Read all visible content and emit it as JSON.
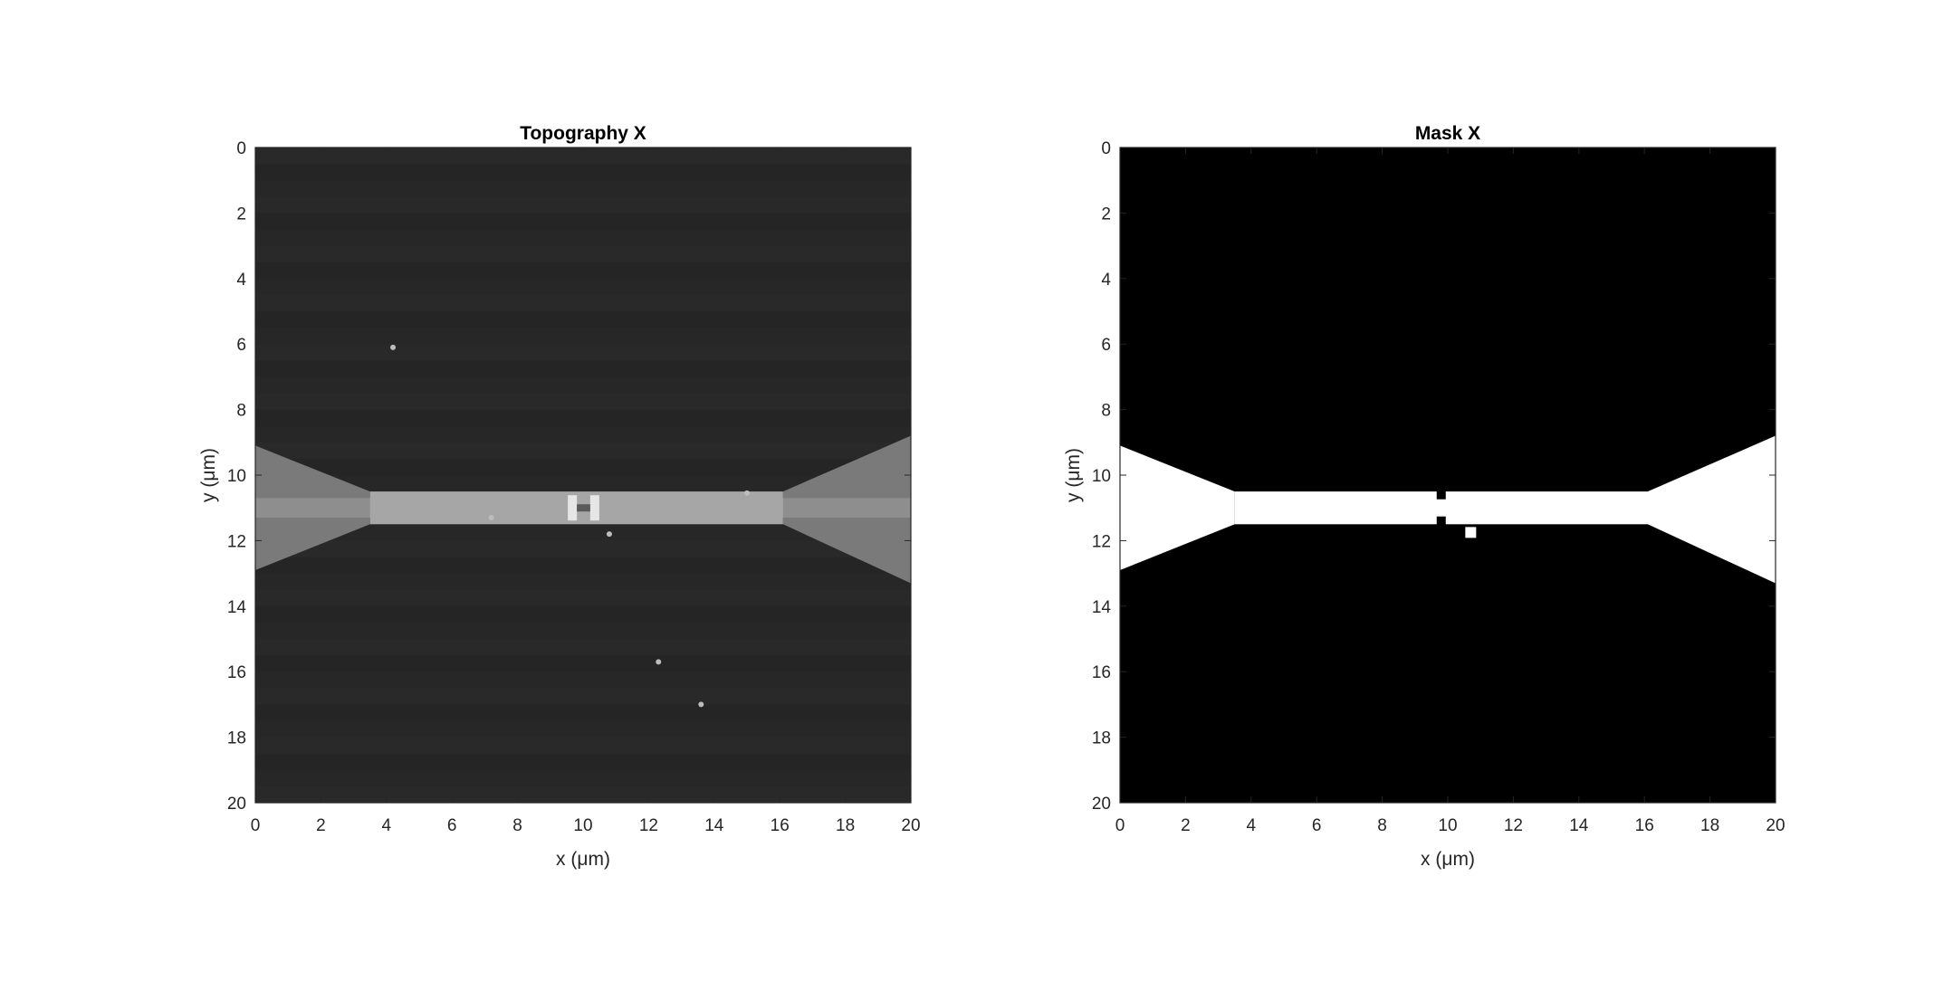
{
  "chart_data": [
    {
      "type": "heatmap",
      "title": "Topography X",
      "xlabel": "x (μm)",
      "ylabel": "y (μm)",
      "xlim": [
        0,
        20
      ],
      "ylim": [
        0,
        20
      ],
      "y_direction": "reversed",
      "xticks": [
        0,
        2,
        4,
        6,
        8,
        10,
        12,
        14,
        16,
        18,
        20
      ],
      "yticks": [
        0,
        2,
        4,
        6,
        8,
        10,
        12,
        14,
        16,
        18,
        20
      ],
      "xtick_labels": [
        "0",
        "2",
        "4",
        "6",
        "8",
        "10",
        "12",
        "14",
        "16",
        "18",
        "20"
      ],
      "ytick_labels": [
        "0",
        "2",
        "4",
        "6",
        "8",
        "10",
        "12",
        "14",
        "16",
        "18",
        "20"
      ],
      "colormap": "gray",
      "background_color": "#272727",
      "electrode_color": "#7a7a7a",
      "wire_color": "#a6a6a6",
      "wire_edge_color": "#8e8e8e",
      "feature_color": "#e6e6e6",
      "features": {
        "left_electrode": {
          "outer_top": 9.1,
          "outer_bottom": 12.9,
          "neck_x": 3.5
        },
        "right_electrode": {
          "outer_top": 8.8,
          "outer_bottom": 13.3,
          "neck_x": 16.1
        },
        "wire": {
          "top": 10.5,
          "bottom": 11.5,
          "x_start": 3.5,
          "x_end": 16.1
        },
        "junction": {
          "x": 10.0,
          "gap": 0.6,
          "y": 11.0
        },
        "particles": [
          {
            "x": 15.0,
            "y": 10.55
          },
          {
            "x": 10.8,
            "y": 11.8
          },
          {
            "x": 4.2,
            "y": 6.1
          },
          {
            "x": 12.3,
            "y": 15.7
          },
          {
            "x": 13.6,
            "y": 17.0
          },
          {
            "x": 7.2,
            "y": 11.3
          }
        ]
      }
    },
    {
      "type": "heatmap",
      "title": "Mask X",
      "xlabel": "x (μm)",
      "ylabel": "y (μm)",
      "xlim": [
        0,
        20
      ],
      "ylim": [
        0,
        20
      ],
      "y_direction": "reversed",
      "xticks": [
        0,
        2,
        4,
        6,
        8,
        10,
        12,
        14,
        16,
        18,
        20
      ],
      "yticks": [
        0,
        2,
        4,
        6,
        8,
        10,
        12,
        14,
        16,
        18,
        20
      ],
      "xtick_labels": [
        "0",
        "2",
        "4",
        "6",
        "8",
        "10",
        "12",
        "14",
        "16",
        "18",
        "20"
      ],
      "ytick_labels": [
        "0",
        "2",
        "4",
        "6",
        "8",
        "10",
        "12",
        "14",
        "16",
        "18",
        "20"
      ],
      "colormap": "binary",
      "background_color": "#000000",
      "mask_color": "#ffffff",
      "features": {
        "left_electrode": {
          "outer_top": 9.1,
          "outer_bottom": 12.9,
          "neck_x": 3.5
        },
        "right_electrode": {
          "outer_top": 8.8,
          "outer_bottom": 13.3,
          "neck_x": 16.1
        },
        "wire": {
          "top": 10.5,
          "bottom": 11.5,
          "x_start": 3.5,
          "x_end": 16.1
        },
        "mask_holes": [
          {
            "x": 9.8,
            "y": 10.6
          },
          {
            "x": 9.8,
            "y": 11.4
          }
        ],
        "mask_dots": [
          {
            "x": 10.7,
            "y": 11.75
          }
        ]
      }
    }
  ]
}
